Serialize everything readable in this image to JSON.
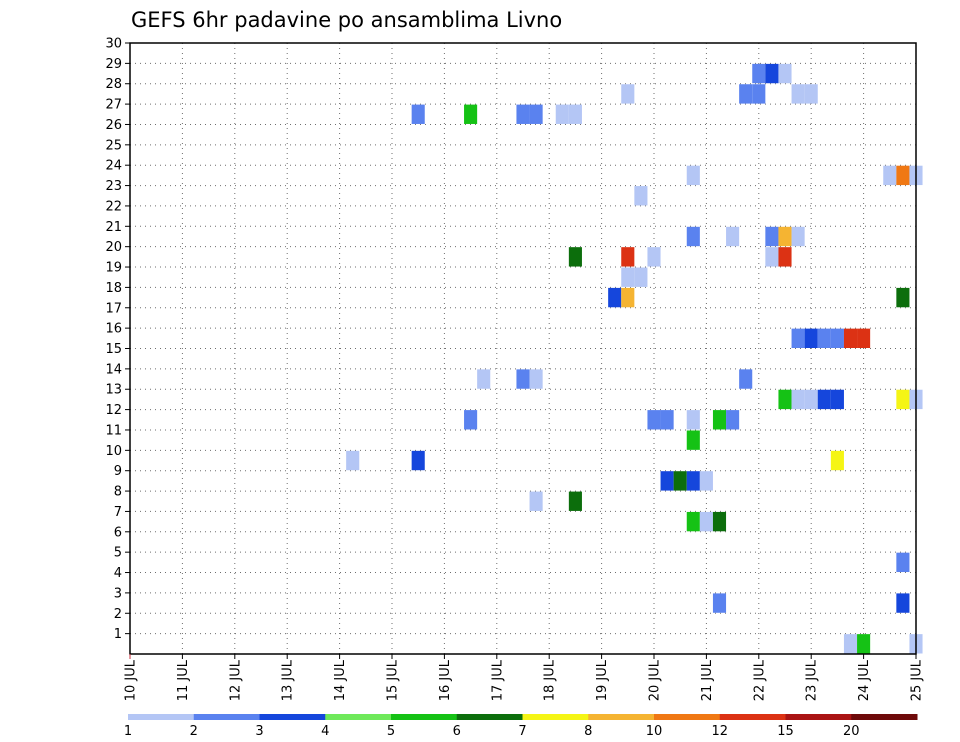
{
  "chart_data": {
    "type": "heatmap",
    "title": "GEFS 6hr padavine po ansamblima Livno",
    "xlabel": "",
    "ylabel": "",
    "x_tick_labels": [
      "10 JUL",
      "11 JUL",
      "12 JUL",
      "13 JUL",
      "14 JUL",
      "15 JUL",
      "16 JUL",
      "17 JUL",
      "18 JUL",
      "19 JUL",
      "20 JUL",
      "21 JUL",
      "22 JUL",
      "23 JUL",
      "24 JUL",
      "25 JUL"
    ],
    "x_range_days": [
      0,
      15
    ],
    "y_tick_labels": [
      1,
      2,
      3,
      4,
      5,
      6,
      7,
      8,
      9,
      10,
      11,
      12,
      13,
      14,
      15,
      16,
      17,
      18,
      19,
      20,
      21,
      22,
      23,
      24,
      25,
      26,
      27,
      28,
      29,
      30
    ],
    "y_range": [
      0,
      30
    ],
    "grid": true,
    "colorbar": {
      "levels": [
        "1",
        "2",
        "3",
        "4",
        "5",
        "6",
        "7",
        "8",
        "10",
        "12",
        "15",
        "20"
      ],
      "colors": [
        "#b4c6f5",
        "#5a82ef",
        "#1546dc",
        "#6ee95a",
        "#15c215",
        "#0c6e0c",
        "#f5f515",
        "#f5b432",
        "#f07814",
        "#dc3214",
        "#aa1414",
        "#6e0a0a"
      ]
    },
    "cells": [
      {
        "member": 0,
        "day": 13.75,
        "level": 1
      },
      {
        "member": 0,
        "day": 14.0,
        "level": 5
      },
      {
        "member": 0,
        "day": 15.0,
        "level": 1
      },
      {
        "member": 2,
        "day": 11.25,
        "level": 2
      },
      {
        "member": 2,
        "day": 14.75,
        "level": 3
      },
      {
        "member": 4,
        "day": 14.75,
        "level": 2
      },
      {
        "member": 6,
        "day": 10.75,
        "level": 5
      },
      {
        "member": 6,
        "day": 11.0,
        "level": 1
      },
      {
        "member": 6,
        "day": 11.25,
        "level": 6
      },
      {
        "member": 7,
        "day": 7.75,
        "level": 1
      },
      {
        "member": 7,
        "day": 8.5,
        "level": 6
      },
      {
        "member": 8,
        "day": 10.25,
        "level": 3
      },
      {
        "member": 8,
        "day": 10.5,
        "level": 6
      },
      {
        "member": 8,
        "day": 10.75,
        "level": 3
      },
      {
        "member": 8,
        "day": 11.0,
        "level": 1
      },
      {
        "member": 9,
        "day": 4.25,
        "level": 1
      },
      {
        "member": 9,
        "day": 5.5,
        "level": 3
      },
      {
        "member": 9,
        "day": 13.5,
        "level": 7
      },
      {
        "member": 10,
        "day": 10.75,
        "level": 5
      },
      {
        "member": 11,
        "day": 6.5,
        "level": 2
      },
      {
        "member": 11,
        "day": 10.0,
        "level": 2
      },
      {
        "member": 11,
        "day": 10.25,
        "level": 2
      },
      {
        "member": 11,
        "day": 10.75,
        "level": 1
      },
      {
        "member": 11,
        "day": 11.25,
        "level": 5
      },
      {
        "member": 11,
        "day": 11.5,
        "level": 2
      },
      {
        "member": 12,
        "day": 12.5,
        "level": 5
      },
      {
        "member": 12,
        "day": 12.75,
        "level": 1
      },
      {
        "member": 12,
        "day": 13.0,
        "level": 1
      },
      {
        "member": 12,
        "day": 13.25,
        "level": 3
      },
      {
        "member": 12,
        "day": 13.5,
        "level": 3
      },
      {
        "member": 12,
        "day": 14.75,
        "level": 7
      },
      {
        "member": 12,
        "day": 15.0,
        "level": 1
      },
      {
        "member": 13,
        "day": 6.75,
        "level": 1
      },
      {
        "member": 13,
        "day": 7.5,
        "level": 2
      },
      {
        "member": 13,
        "day": 7.75,
        "level": 1
      },
      {
        "member": 13,
        "day": 11.75,
        "level": 2
      },
      {
        "member": 15,
        "day": 12.75,
        "level": 2
      },
      {
        "member": 15,
        "day": 13.0,
        "level": 3
      },
      {
        "member": 15,
        "day": 13.25,
        "level": 2
      },
      {
        "member": 15,
        "day": 13.5,
        "level": 2
      },
      {
        "member": 15,
        "day": 13.75,
        "level": 10
      },
      {
        "member": 15,
        "day": 14.0,
        "level": 10
      },
      {
        "member": 17,
        "day": 9.25,
        "level": 3
      },
      {
        "member": 17,
        "day": 9.5,
        "level": 8
      },
      {
        "member": 17,
        "day": 14.75,
        "level": 6
      },
      {
        "member": 18,
        "day": 9.5,
        "level": 1
      },
      {
        "member": 18,
        "day": 9.75,
        "level": 1
      },
      {
        "member": 19,
        "day": 8.5,
        "level": 6
      },
      {
        "member": 19,
        "day": 9.5,
        "level": 10
      },
      {
        "member": 19,
        "day": 10.0,
        "level": 1
      },
      {
        "member": 19,
        "day": 12.25,
        "level": 1
      },
      {
        "member": 19,
        "day": 12.5,
        "level": 10
      },
      {
        "member": 20,
        "day": 10.75,
        "level": 2
      },
      {
        "member": 20,
        "day": 11.5,
        "level": 1
      },
      {
        "member": 20,
        "day": 12.25,
        "level": 2
      },
      {
        "member": 20,
        "day": 12.5,
        "level": 8
      },
      {
        "member": 20,
        "day": 12.75,
        "level": 1
      },
      {
        "member": 22,
        "day": 9.75,
        "level": 1
      },
      {
        "member": 23,
        "day": 10.75,
        "level": 1
      },
      {
        "member": 23,
        "day": 14.5,
        "level": 1
      },
      {
        "member": 23,
        "day": 14.75,
        "level": 9
      },
      {
        "member": 23,
        "day": 15.0,
        "level": 1
      },
      {
        "member": 26,
        "day": 5.5,
        "level": 2
      },
      {
        "member": 26,
        "day": 6.5,
        "level": 5
      },
      {
        "member": 26,
        "day": 7.5,
        "level": 2
      },
      {
        "member": 26,
        "day": 7.75,
        "level": 2
      },
      {
        "member": 26,
        "day": 8.25,
        "level": 1
      },
      {
        "member": 26,
        "day": 8.5,
        "level": 1
      },
      {
        "member": 27,
        "day": 9.5,
        "level": 1
      },
      {
        "member": 27,
        "day": 11.75,
        "level": 2
      },
      {
        "member": 27,
        "day": 12.0,
        "level": 2
      },
      {
        "member": 27,
        "day": 12.75,
        "level": 1
      },
      {
        "member": 27,
        "day": 13.0,
        "level": 1
      },
      {
        "member": 28,
        "day": 12.0,
        "level": 2
      },
      {
        "member": 28,
        "day": 12.25,
        "level": 3
      },
      {
        "member": 28,
        "day": 12.5,
        "level": 1
      }
    ]
  }
}
